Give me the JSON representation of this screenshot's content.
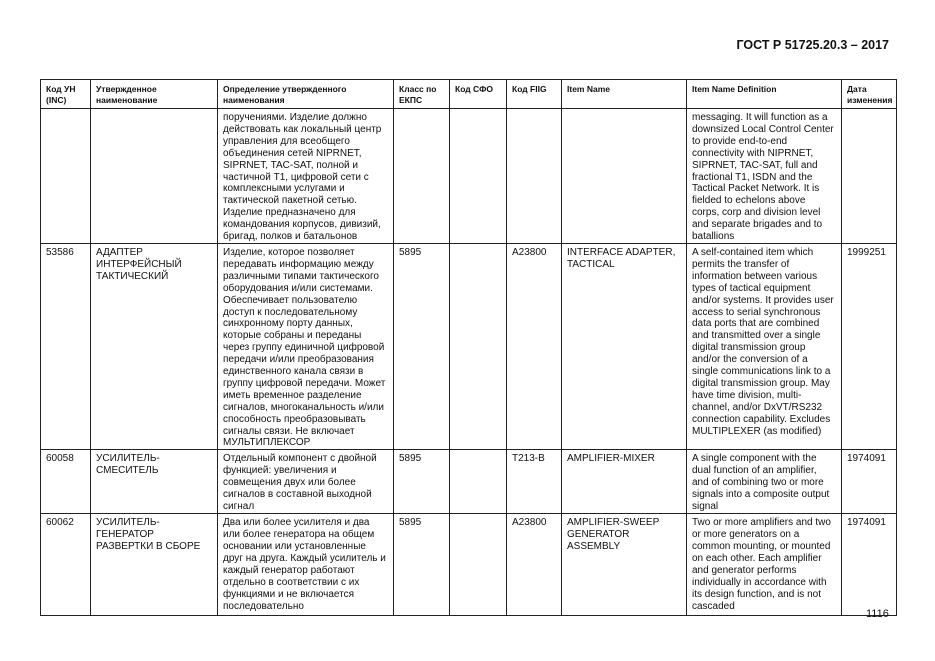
{
  "header": {
    "standard": "ГОСТ Р 51725.20.3 – 2017"
  },
  "table": {
    "columns": [
      [
        "Код УН",
        "(INC)"
      ],
      [
        "Утвержденное",
        "наименование"
      ],
      [
        "Определение утвержденного",
        "наименования"
      ],
      [
        "Класс по",
        "ЕКПС"
      ],
      [
        "Код СФО"
      ],
      [
        "Код FIIG"
      ],
      [
        "Item Name"
      ],
      [
        "Item Name Definition"
      ],
      [
        "Дата",
        "изменения"
      ]
    ],
    "rows": [
      {
        "def": [
          "поручениями. Изделие должно",
          "действовать как локальный центр",
          "управления для всеобщего",
          "объединения сетей NIPRNET,",
          "SIPRNET, TAC-SAT, полной и",
          "частичной Т1, цифровой сети с",
          "комплексными услугами и",
          "тактической пакетной сетью.",
          "Изделие предназначено для",
          "командования корпусов, дивизий,",
          "бригад, полков и батальонов"
        ],
        "itemdef": [
          "messaging.  It will function as a",
          "downsized Local Control Center",
          "to provide end-to-end",
          "connectivity with NIPRNET,",
          "SIPRNET, TAC-SAT, full and",
          "fractional T1, ISDN and the",
          "Tactical Packet Network.  It is",
          "fielded to echelons above",
          "corps, corp and division level",
          "and separate brigades and to",
          "batallions"
        ]
      },
      {
        "inc": [
          "53586"
        ],
        "name": [
          "АДАПТЕР",
          "ИНТЕРФЕЙСНЫЙ",
          "ТАКТИЧЕСКИЙ"
        ],
        "def": [
          "Изделие, которое позволяет",
          "передавать информацию между",
          "различными типами тактического",
          "оборудования и/или системами.",
          "Обеспечивает пользователю",
          "доступ к последовательному",
          "синхронному порту данных,",
          "которые собраны и переданы",
          "через группу единичной цифровой",
          "передачи и/или преобразования",
          "единственного канала связи в",
          "группу цифровой передачи. Может",
          "иметь временное разделение",
          "сигналов, многоканальность и/или",
          "способность преобразовывать",
          "сигналы связи. Не включает",
          "МУЛЬТИПЛЕКСОР"
        ],
        "class": [
          "5895"
        ],
        "fiig": [
          "A23800"
        ],
        "item": [
          "INTERFACE ADAPTER,",
          "TACTICAL"
        ],
        "itemdef": [
          "A self-contained item which",
          "permits the transfer of",
          "information between various",
          "types of tactical equipment",
          "and/or systems. It provides user",
          "access to serial synchronous",
          "data ports that are combined",
          "and transmitted over a single",
          "digital transmission group",
          "and/or the conversion of a",
          "single communications link to a",
          "digital transmission group. May",
          "have time division, multi-",
          "channel, and/or DxVT/RS232",
          "connection capability. Excludes",
          "MULTIPLEXER (as modified)"
        ],
        "date": [
          "1999251"
        ]
      },
      {
        "inc": [
          "60058"
        ],
        "name": [
          "УСИЛИТЕЛЬ-",
          "СМЕСИТЕЛЬ"
        ],
        "def": [
          "Отдельный компонент с двойной",
          "функцией: увеличения и",
          "совмещения двух или более",
          "сигналов в составной выходной",
          "сигнал"
        ],
        "class": [
          "5895"
        ],
        "fiig": [
          "T213-B"
        ],
        "item": [
          "AMPLIFIER-MIXER"
        ],
        "itemdef": [
          "A single component with the",
          "dual function of an amplifier,",
          "and of combining two or more",
          "signals into a composite output",
          "signal"
        ],
        "date": [
          "1974091"
        ]
      },
      {
        "inc": [
          "60062"
        ],
        "name": [
          "УСИЛИТЕЛЬ-",
          "ГЕНЕРАТОР",
          "РАЗВЕРТКИ В СБОРЕ"
        ],
        "def": [
          "Два или более усилителя и два",
          "или более генератора на общем",
          "основании или установленные",
          "друг на друга. Каждый усилитель и",
          "каждый генератор работают",
          "отдельно в соответствии с их",
          "функциями и не включается",
          "последовательно"
        ],
        "class": [
          "5895"
        ],
        "fiig": [
          "A23800"
        ],
        "item": [
          "AMPLIFIER-SWEEP",
          "GENERATOR",
          "ASSEMBLY"
        ],
        "itemdef": [
          "Two or more amplifiers and two",
          "or more generators on a",
          "common mounting, or mounted",
          "on each other. Each amplifier",
          "and generator performs",
          "individually in accordance with",
          "its design function, and is not",
          "cascaded"
        ],
        "date": [
          "1974091"
        ]
      }
    ]
  },
  "footer": {
    "page_number": "1116"
  }
}
